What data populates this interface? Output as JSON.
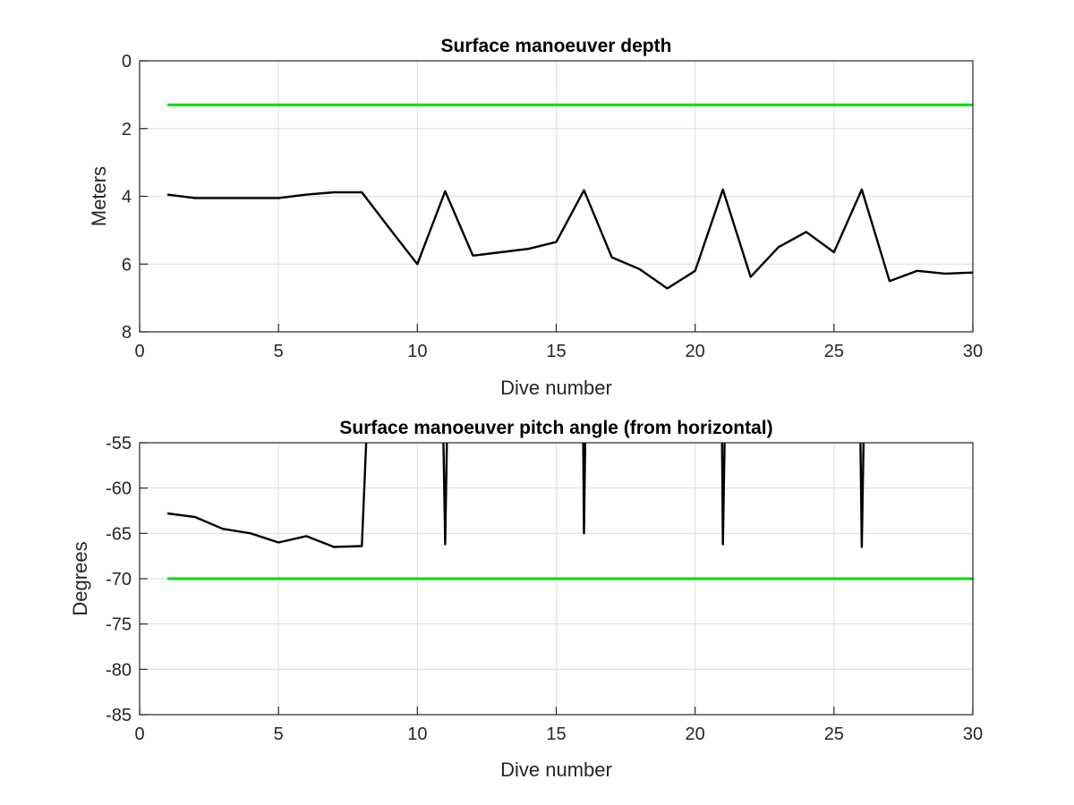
{
  "chart_data": [
    {
      "type": "line",
      "title": "Surface manoeuver depth",
      "xlabel": "Dive number",
      "ylabel": "Meters",
      "xlim": [
        0,
        30
      ],
      "ylim": [
        0,
        8
      ],
      "y_reversed": true,
      "grid": true,
      "x_ticks": [
        0,
        5,
        10,
        15,
        20,
        25,
        30
      ],
      "y_ticks": [
        0,
        2,
        4,
        6,
        8
      ],
      "colors": {
        "data": "#000000",
        "threshold": "#00dd00"
      },
      "series": [
        {
          "style": "black",
          "x": [
            1,
            2,
            3,
            4,
            5,
            6,
            7,
            8,
            9,
            10,
            11,
            12,
            13,
            14,
            15,
            16,
            17,
            18,
            19,
            20,
            21,
            22,
            23,
            24,
            25,
            26,
            27,
            28,
            29,
            30
          ],
          "y": [
            3.95,
            4.05,
            4.05,
            4.05,
            4.05,
            3.95,
            3.88,
            3.88,
            4.95,
            6.0,
            3.85,
            5.75,
            5.65,
            5.55,
            5.35,
            3.82,
            5.8,
            6.15,
            6.72,
            6.2,
            3.8,
            6.38,
            5.5,
            5.05,
            5.65,
            3.8,
            6.5,
            6.2,
            6.28,
            6.25
          ]
        },
        {
          "style": "green",
          "x": [
            1,
            30
          ],
          "y": [
            1.3,
            1.3
          ]
        }
      ]
    },
    {
      "type": "line",
      "title": "Surface manoeuver pitch angle (from horizontal)",
      "xlabel": "Dive number",
      "ylabel": "Degrees",
      "xlim": [
        0,
        30
      ],
      "ylim": [
        -85,
        -55
      ],
      "grid": true,
      "x_ticks": [
        0,
        5,
        10,
        15,
        20,
        25,
        30
      ],
      "y_ticks": [
        -55,
        -60,
        -65,
        -70,
        -75,
        -80,
        -85
      ],
      "colors": {
        "data": "#000000",
        "threshold": "#00dd00"
      },
      "series": [
        {
          "style": "black",
          "x": [
            1,
            2,
            3,
            4,
            5,
            6,
            7,
            8,
            8.5,
            10.8,
            11,
            11.2,
            15.9,
            16,
            16.15,
            20.9,
            21,
            21.2,
            25.85,
            26,
            26.2
          ],
          "y": [
            -62.8,
            -63.2,
            -64.5,
            -65,
            -66,
            -65.3,
            -66.5,
            -66.4,
            -30,
            -30,
            -66.2,
            -30,
            -30,
            -65,
            -30,
            -30,
            -66.2,
            -30,
            -30,
            -66.5,
            -30
          ]
        },
        {
          "style": "green",
          "x": [
            1,
            30
          ],
          "y": [
            -70,
            -70
          ]
        }
      ]
    }
  ]
}
